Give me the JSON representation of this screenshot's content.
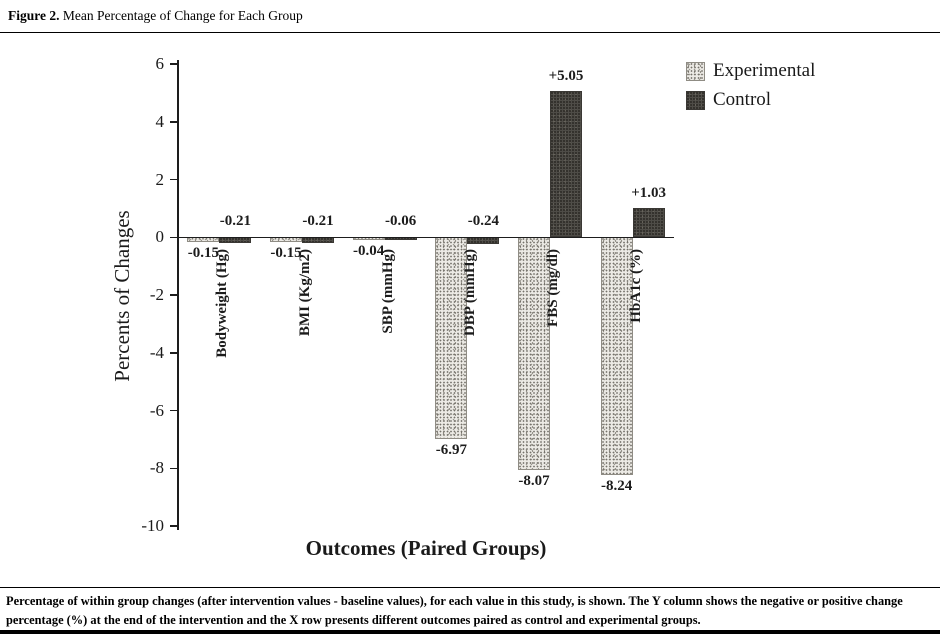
{
  "figure": {
    "label": "Figure 2.",
    "title": " Mean Percentage of Change for Each Group",
    "caption": "Percentage of within group changes (after intervention values - baseline values), for each value in this study, is shown. The Y column shows the negative or positive change percentage (%) at the end of the intervention and the X row presents different outcomes paired as control and experimental groups."
  },
  "chart_data": {
    "type": "bar",
    "title": "",
    "xlabel": "Outcomes (Paired Groups)",
    "ylabel": "Percents of Changes",
    "ylim": [
      -10,
      6
    ],
    "yticks": [
      6,
      4,
      2,
      0,
      -2,
      -4,
      -6,
      -8,
      -10
    ],
    "grid": false,
    "legend_position": "top-right",
    "categories": [
      "Bodyweight (Hg)",
      "BMI (Kg/m2)",
      "SBP (mmHg)",
      "DBP (mmHg)",
      "FBS (mg/dl)",
      "HbA1c (%)"
    ],
    "series": [
      {
        "name": "Experimental",
        "values": [
          -0.15,
          -0.15,
          -0.04,
          -6.97,
          -8.07,
          -8.24
        ],
        "labels": [
          "-0.15",
          "-0.15",
          "-0.04",
          "-6.97",
          "-8.07",
          "-8.24"
        ]
      },
      {
        "name": "Control",
        "values": [
          -0.21,
          -0.21,
          -0.06,
          -0.24,
          5.05,
          1.03
        ],
        "labels": [
          "-0.21",
          "-0.21",
          "-0.06",
          "-0.24",
          "+5.05",
          "+1.03"
        ]
      }
    ]
  },
  "colors": {
    "experimental_fill": "#eceae5",
    "control_fill": "#4e4c47",
    "axis": "#1d1d1d"
  }
}
